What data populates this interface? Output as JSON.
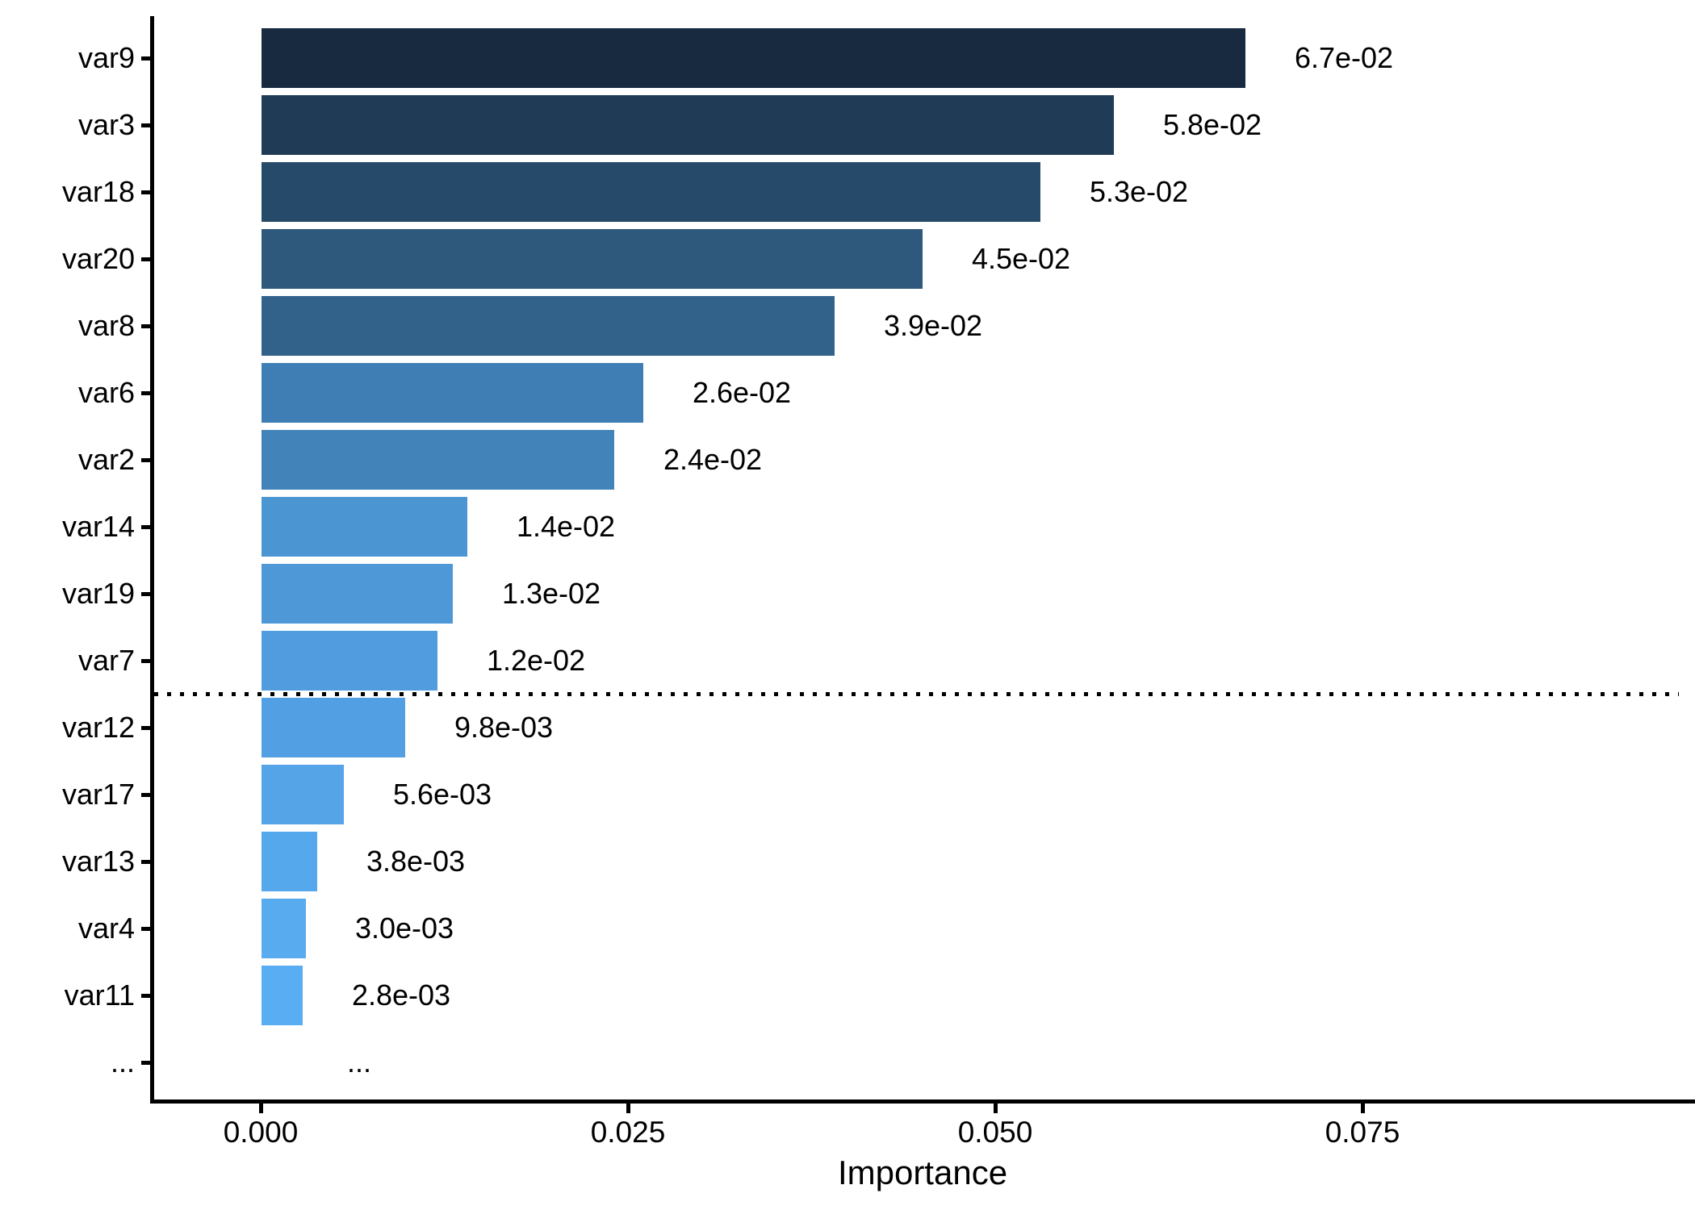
{
  "chart_data": {
    "type": "bar",
    "orientation": "horizontal",
    "title": "",
    "xlabel": "Importance",
    "ylabel": "",
    "categories": [
      "var9",
      "var3",
      "var18",
      "var20",
      "var8",
      "var6",
      "var2",
      "var14",
      "var19",
      "var7",
      "var12",
      "var17",
      "var13",
      "var4",
      "var11",
      "..."
    ],
    "values": [
      0.067,
      0.058,
      0.053,
      0.045,
      0.039,
      0.026,
      0.024,
      0.014,
      0.013,
      0.012,
      0.0098,
      0.0056,
      0.0038,
      0.003,
      0.0028,
      null
    ],
    "value_labels": [
      "6.7e-02",
      "5.8e-02",
      "5.3e-02",
      "4.5e-02",
      "3.9e-02",
      "2.6e-02",
      "2.4e-02",
      "1.4e-02",
      "1.3e-02",
      "1.2e-02",
      "9.8e-03",
      "5.6e-03",
      "3.8e-03",
      "3.0e-03",
      "2.8e-03",
      "..."
    ],
    "bar_colors": [
      "#172A40",
      "#1F3B56",
      "#264A69",
      "#2E597C",
      "#32618A",
      "#3F7EB4",
      "#4283B9",
      "#4B95D3",
      "#4E98D8",
      "#509CDE",
      "#52A0E3",
      "#55A4E8",
      "#56A8EC",
      "#58ABEF",
      "#59ADF2",
      null
    ],
    "x_ticks": [
      {
        "value": 0.0,
        "label": "0.000"
      },
      {
        "value": 0.025,
        "label": "0.025"
      },
      {
        "value": 0.05,
        "label": "0.050"
      },
      {
        "value": 0.075,
        "label": "0.075"
      }
    ],
    "xlim": [
      -0.0074,
      0.0977
    ],
    "grid": false,
    "legend": "none",
    "cutoff_line": {
      "after_category": "var7",
      "before_category": "var12",
      "style": "dotted",
      "color": "#000000"
    },
    "colors": {
      "axis": "#000000",
      "text": "#000000",
      "background": "#FFFFFF"
    }
  }
}
